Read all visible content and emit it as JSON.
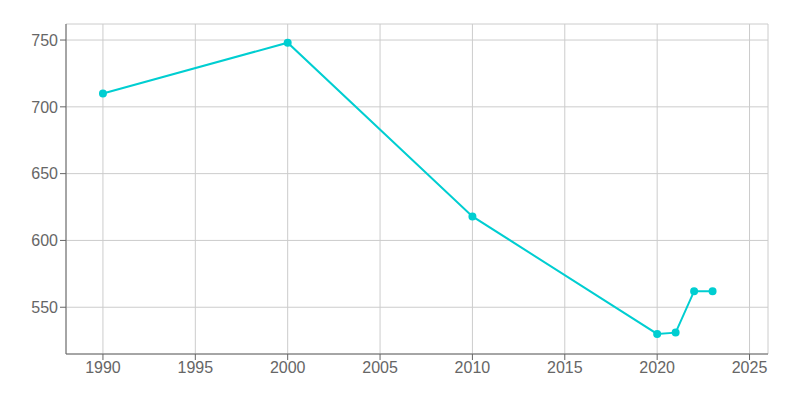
{
  "chart_data": {
    "type": "line",
    "x": [
      1990,
      2000,
      2010,
      2020,
      2021,
      2022,
      2023
    ],
    "values": [
      710,
      748,
      618,
      530,
      531,
      562,
      562
    ],
    "color": "#00CED1",
    "marker": "circle",
    "xlim": [
      1988,
      2026
    ],
    "ylim": [
      515,
      762
    ],
    "xticks": [
      1990,
      1995,
      2000,
      2005,
      2010,
      2015,
      2020,
      2025
    ],
    "yticks": [
      550,
      600,
      650,
      700,
      750
    ],
    "grid": true
  }
}
